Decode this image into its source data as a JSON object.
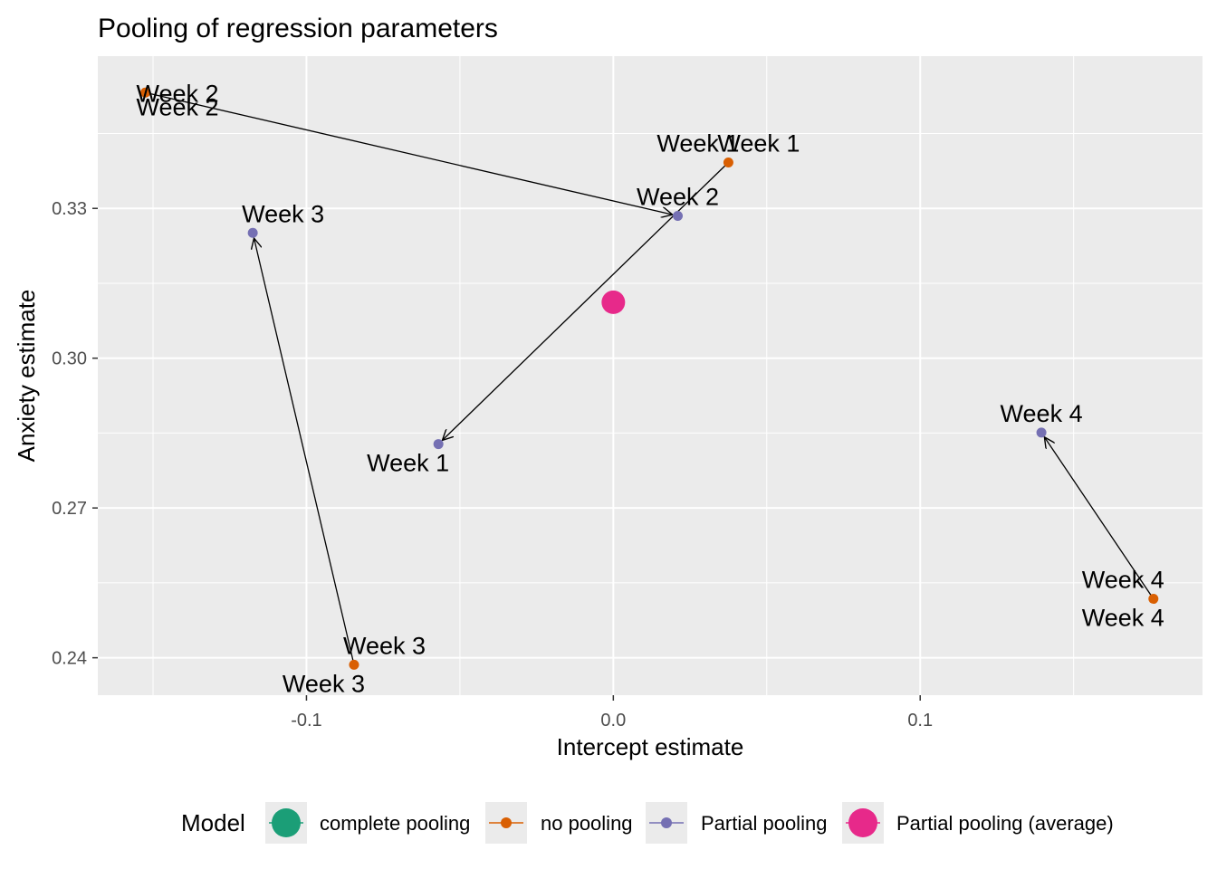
{
  "chart_data": {
    "type": "scatter",
    "title": "Pooling of regression parameters",
    "xlabel": "Intercept estimate",
    "ylabel": "Anxiety estimate",
    "xlim": [
      -0.168,
      0.192
    ],
    "ylim": [
      0.2325,
      0.3605
    ],
    "x_ticks": [
      -0.1,
      0.0,
      0.1
    ],
    "x_tick_labels": [
      "-0.1",
      "0.0",
      "0.1"
    ],
    "y_ticks": [
      0.24,
      0.27,
      0.3,
      0.33
    ],
    "y_tick_labels": [
      "0.24",
      "0.27",
      "0.30",
      "0.33"
    ],
    "grid": true,
    "legend_position": "bottom",
    "legend_title": "Model",
    "series": [
      {
        "name": "complete pooling",
        "color": "#1b9e77",
        "points": []
      },
      {
        "name": "no pooling",
        "color": "#d95f02",
        "points": [
          {
            "label": "Week 1",
            "x": 0.0375,
            "y": 0.3392
          },
          {
            "label": "Week 2",
            "x": -0.1525,
            "y": 0.3532
          },
          {
            "label": "Week 3",
            "x": -0.0845,
            "y": 0.2386
          },
          {
            "label": "Week 4",
            "x": 0.176,
            "y": 0.2518
          }
        ]
      },
      {
        "name": "Partial pooling",
        "color": "#7570b3",
        "points": [
          {
            "label": "Week 1",
            "x": -0.057,
            "y": 0.2828
          },
          {
            "label": "Week 2",
            "x": 0.021,
            "y": 0.3285
          },
          {
            "label": "Week 3",
            "x": -0.1175,
            "y": 0.3251
          },
          {
            "label": "Week 4",
            "x": 0.1395,
            "y": 0.2851
          }
        ]
      },
      {
        "name": "Partial pooling (average)",
        "color": "#e7298a",
        "points": [
          {
            "label": "",
            "x": 0.0,
            "y": 0.3112
          }
        ]
      }
    ],
    "arrows": [
      {
        "from": {
          "x": 0.0375,
          "y": 0.3392
        },
        "to": {
          "x": -0.057,
          "y": 0.2828
        }
      },
      {
        "from": {
          "x": -0.1525,
          "y": 0.3532
        },
        "to": {
          "x": 0.021,
          "y": 0.3285
        }
      },
      {
        "from": {
          "x": -0.0845,
          "y": 0.2386
        },
        "to": {
          "x": -0.1175,
          "y": 0.3251
        }
      },
      {
        "from": {
          "x": 0.176,
          "y": 0.2518
        },
        "to": {
          "x": 0.1395,
          "y": 0.2851
        }
      }
    ],
    "point_labels": [
      {
        "text": "Week 1",
        "x": 0.0375,
        "y": 0.3392,
        "dx": 0,
        "dy": -1,
        "anchor": "end"
      },
      {
        "text": "Week 1",
        "x": 0.0375,
        "y": 0.3392,
        "dx": 0,
        "dy": -1,
        "anchor": "start"
      },
      {
        "text": "Week 2",
        "x": -0.1525,
        "y": 0.3532,
        "dx": 1,
        "dy": 0,
        "anchor": "start"
      },
      {
        "text": "Week 2",
        "x": -0.1525,
        "y": 0.3532,
        "dx": 1,
        "dy": 1,
        "anchor": "start"
      },
      {
        "text": "Week 3",
        "x": -0.0845,
        "y": 0.2386,
        "dx": 0,
        "dy": -1,
        "anchor": "start"
      },
      {
        "text": "Week 3",
        "x": -0.0845,
        "y": 0.2386,
        "dx": 0,
        "dy": 1,
        "anchor": "end"
      },
      {
        "text": "Week 4",
        "x": 0.176,
        "y": 0.2518,
        "dx": 0,
        "dy": -1,
        "anchor": "end"
      },
      {
        "text": "Week 4",
        "x": 0.176,
        "y": 0.2518,
        "dx": 0,
        "dy": 1,
        "anchor": "end"
      },
      {
        "text": "Week 1",
        "x": -0.057,
        "y": 0.2828,
        "dx": 0,
        "dy": 1,
        "anchor": "end"
      },
      {
        "text": "Week 2",
        "x": 0.021,
        "y": 0.3285,
        "dx": 0,
        "dy": -1,
        "anchor": "middle"
      },
      {
        "text": "Week 3",
        "x": -0.1175,
        "y": 0.3251,
        "dx": 0,
        "dy": -1,
        "anchor": "start"
      },
      {
        "text": "Week 4",
        "x": 0.1395,
        "y": 0.2851,
        "dx": 0,
        "dy": -1,
        "anchor": "middle"
      }
    ]
  }
}
